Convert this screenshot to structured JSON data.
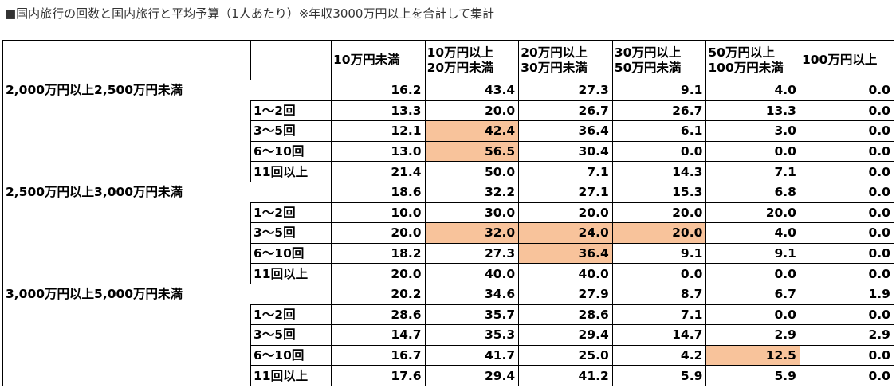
{
  "title": "■国内旅行の回数と国内旅行と平均予算（1人あたり）※年収3000万円以上を合計して集計",
  "columns": [
    "10万円未満",
    "10万円以上\n20万円未満",
    "20万円以上\n30万円未満",
    "30万円以上\n50万円未満",
    "50万円以上\n100万円未満",
    "100万円以上"
  ],
  "highlight_color": "#f8c39b",
  "groups": [
    {
      "label": "2,000万円以上2,500万円未満",
      "total": [
        "16.2",
        "43.4",
        "27.3",
        "9.1",
        "4.0",
        "0.0"
      ],
      "rows": [
        {
          "label": "1～2回",
          "values": [
            "13.3",
            "20.0",
            "26.7",
            "26.7",
            "13.3",
            "0.0"
          ],
          "highlight": []
        },
        {
          "label": "3～5回",
          "values": [
            "12.1",
            "42.4",
            "36.4",
            "6.1",
            "3.0",
            "0.0"
          ],
          "highlight": [
            1
          ]
        },
        {
          "label": "6～10回",
          "values": [
            "13.0",
            "56.5",
            "30.4",
            "0.0",
            "0.0",
            "0.0"
          ],
          "highlight": [
            1
          ]
        },
        {
          "label": "11回以上",
          "values": [
            "21.4",
            "50.0",
            "7.1",
            "14.3",
            "7.1",
            "0.0"
          ],
          "highlight": []
        }
      ]
    },
    {
      "label": "2,500万円以上3,000万円未満",
      "total": [
        "18.6",
        "32.2",
        "27.1",
        "15.3",
        "6.8",
        "0.0"
      ],
      "rows": [
        {
          "label": "1～2回",
          "values": [
            "10.0",
            "30.0",
            "20.0",
            "20.0",
            "20.0",
            "0.0"
          ],
          "highlight": []
        },
        {
          "label": "3～5回",
          "values": [
            "20.0",
            "32.0",
            "24.0",
            "20.0",
            "4.0",
            "0.0"
          ],
          "highlight": [
            1,
            2,
            3
          ]
        },
        {
          "label": "6～10回",
          "values": [
            "18.2",
            "27.3",
            "36.4",
            "9.1",
            "9.1",
            "0.0"
          ],
          "highlight": [
            2
          ]
        },
        {
          "label": "11回以上",
          "values": [
            "20.0",
            "40.0",
            "40.0",
            "0.0",
            "0.0",
            "0.0"
          ],
          "highlight": []
        }
      ]
    },
    {
      "label": "3,000万円以上5,000万円未満",
      "total": [
        "20.2",
        "34.6",
        "27.9",
        "8.7",
        "6.7",
        "1.9"
      ],
      "rows": [
        {
          "label": "1～2回",
          "values": [
            "28.6",
            "35.7",
            "28.6",
            "7.1",
            "0.0",
            "0.0"
          ],
          "highlight": []
        },
        {
          "label": "3～5回",
          "values": [
            "14.7",
            "35.3",
            "29.4",
            "14.7",
            "2.9",
            "2.9"
          ],
          "highlight": []
        },
        {
          "label": "6～10回",
          "values": [
            "16.7",
            "41.7",
            "25.0",
            "4.2",
            "12.5",
            "0.0"
          ],
          "highlight": [
            4
          ]
        },
        {
          "label": "11回以上",
          "values": [
            "17.6",
            "29.4",
            "41.2",
            "5.9",
            "5.9",
            "0.0"
          ],
          "highlight": []
        }
      ]
    }
  ]
}
